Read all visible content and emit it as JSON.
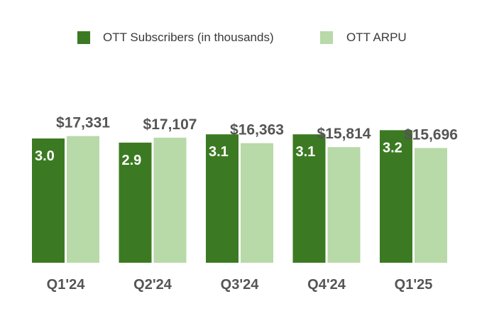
{
  "chart_data": {
    "type": "bar",
    "categories": [
      "Q1'24",
      "Q2'24",
      "Q3'24",
      "Q4'24",
      "Q1'25"
    ],
    "series": [
      {
        "name": "OTT Subscribers (in thousands)",
        "values": [
          3.0,
          2.9,
          3.1,
          3.1,
          3.2
        ],
        "labels": [
          "3.0",
          "2.9",
          "3.1",
          "3.1",
          "3.2"
        ],
        "color": "#3b7a22",
        "ylim": [
          0,
          3.6
        ]
      },
      {
        "name": "OTT ARPU",
        "values": [
          17331,
          17107,
          16363,
          15814,
          15696
        ],
        "labels": [
          "$17,331",
          "$17,107",
          "$16,363",
          "$15,814",
          "$15,696"
        ],
        "color": "#b8d9a8",
        "ylim": [
          0,
          20400
        ]
      }
    ],
    "legend_position": "top",
    "grid": false,
    "title": "",
    "xlabel": "",
    "ylabel": ""
  }
}
